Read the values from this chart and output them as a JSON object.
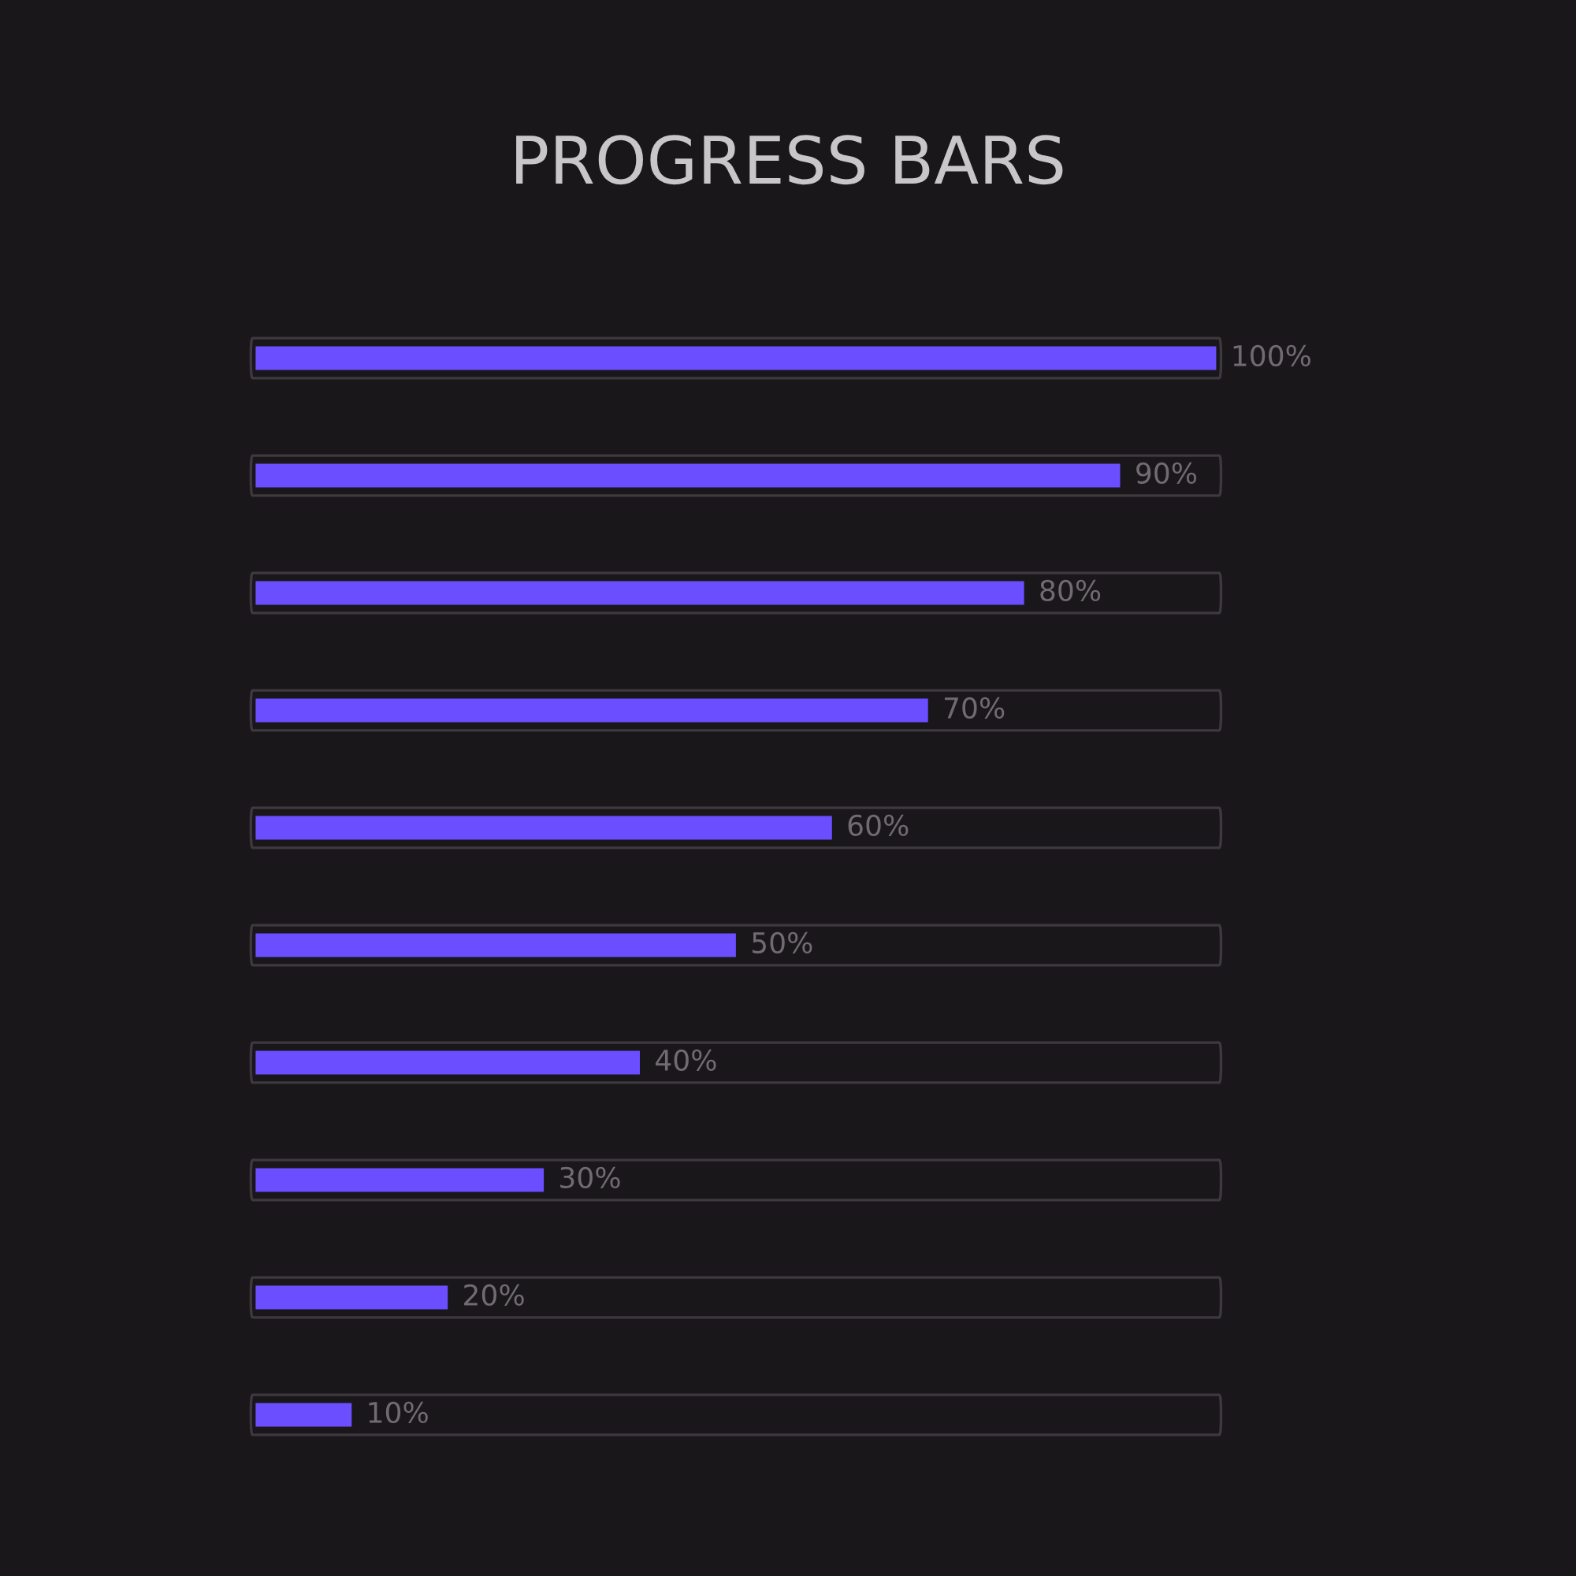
{
  "chart_data": {
    "type": "bar",
    "orientation": "horizontal",
    "title": "PROGRESS BARS",
    "categories": [
      null,
      null,
      null,
      null,
      null,
      null,
      null,
      null,
      null,
      null
    ],
    "values": [
      100,
      90,
      80,
      70,
      60,
      50,
      40,
      30,
      20,
      10
    ],
    "value_labels": [
      "100%",
      "90%",
      "80%",
      "70%",
      "60%",
      "50%",
      "40%",
      "30%",
      "20%",
      "10%"
    ],
    "color": "#6b4eff",
    "grid": false,
    "legend": false
  }
}
